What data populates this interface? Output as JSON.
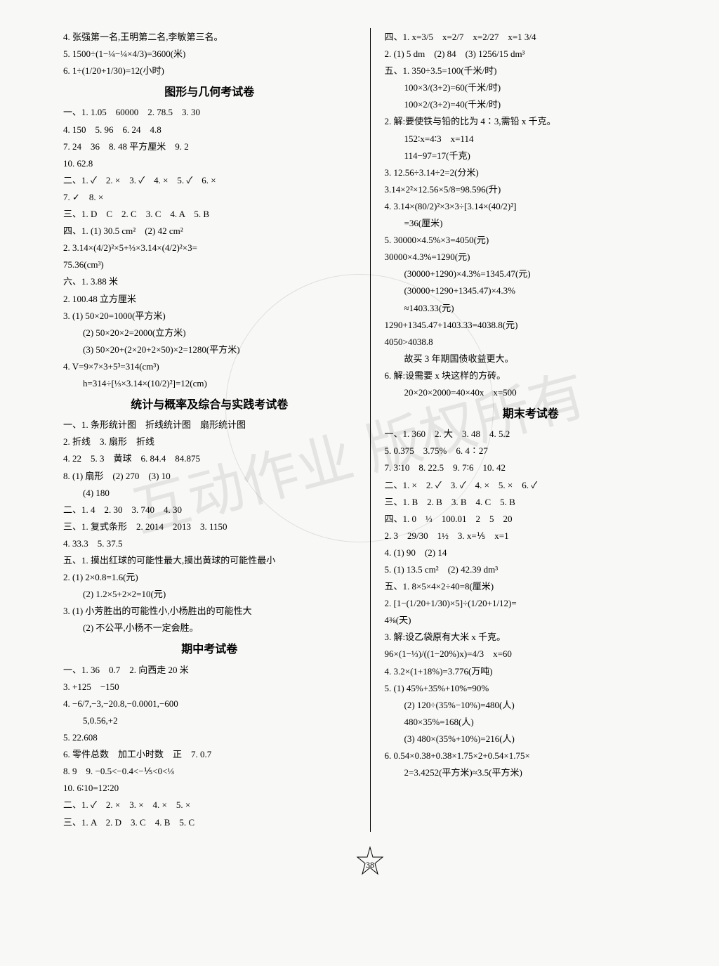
{
  "page_number": "38",
  "watermark": "互动作业 版权所有",
  "left": {
    "pre": [
      "4. 张强第一名,王明第二名,李敏第三名。",
      "5. 1500÷(1−¼−¼×4/3)=3600(米)",
      "6. 1÷(1/20+1/30)=12(小时)"
    ],
    "sec1_title": "图形与几何考试卷",
    "sec1": [
      "一、1. 1.05　60000　2. 78.5　3. 30",
      "4. 150　5. 96　6. 24　4.8",
      "7. 24　36　8. 48 平方厘米　9. 2",
      "10. 62.8",
      "二、1. ✓　2. ×　3. ✓　4. ×　5. ✓　6. ×",
      "7. ✓　8. ×",
      "三、1. D　C　2. C　3. C　4. A　5. B",
      "四、1. (1) 30.5 cm²　(2) 42 cm²",
      "2. 3.14×(4/2)²×5+⅓×3.14×(4/2)²×3=",
      "75.36(cm³)",
      "六、1. 3.88 米",
      "2. 100.48 立方厘米",
      "3. (1) 50×20=1000(平方米)",
      "(2) 50×20×2=2000(立方米)",
      "(3) 50×20+(2×20+2×50)×2=1280(平方米)",
      "4. V=9×7×3+5³=314(cm³)",
      "h=314÷[⅓×3.14×(10/2)²]=12(cm)"
    ],
    "sec2_title": "统计与概率及综合与实践考试卷",
    "sec2": [
      "一、1. 条形统计图　折线统计图　扇形统计图",
      "2. 折线　3. 扇形　折线",
      "4. 22　5. 3　黄球　6. 84.4　84.875",
      "8. (1) 扇形　(2) 270　(3) 10",
      "(4) 180",
      "二、1. 4　2. 30　3. 740　4. 30",
      "三、1. 复式条形　2. 2014　2013　3. 1150",
      "4. 33.3　5. 37.5",
      "五、1. 摸出红球的可能性最大,摸出黄球的可能性最小",
      "2. (1) 2×0.8=1.6(元)",
      "(2) 1.2×5+2×2=10(元)",
      "3. (1) 小芳胜出的可能性小,小杨胜出的可能性大",
      "(2) 不公平,小杨不一定会胜。"
    ],
    "sec3_title": "期中考试卷",
    "sec3": [
      "一、1. 36　0.7　2. 向西走 20 米",
      "3. +125　−150",
      "4. −6/7,−3,−20.8,−0.0001,−600",
      "5,0.56,+2",
      "5. 22.608",
      "6. 零件总数　加工小时数　正　7. 0.7",
      "8. 9　9. −0.5<−0.4<−⅕<0<⅓",
      "10. 6∶10=12∶20",
      "二、1. ✓　2. ×　3. ×　4. ×　5. ×",
      "三、1. A　2. D　3. C　4. B　5. C"
    ]
  },
  "right": {
    "pre": [
      "四、1. x=3/5　x=2/7　x=2/27　x=1 3/4",
      "2. (1) 5 dm　(2) 84　(3) 1256/15 dm³",
      "五、1. 350÷3.5=100(千米/时)",
      "100×3/(3+2)=60(千米/时)",
      "100×2/(3+2)=40(千米/时)",
      "2. 解:要使铁与铅的比为 4∶3,需铅 x 千克。",
      "152∶x=4∶3　x=114",
      "114−97=17(千克)",
      "3. 12.56÷3.14÷2=2(分米)",
      "3.14×2²×12.56×5/8=98.596(升)",
      "4. 3.14×(80/2)²×3×3÷[3.14×(40/2)²]",
      "=36(厘米)",
      "5. 30000×4.5%×3=4050(元)",
      "30000×4.3%=1290(元)",
      "(30000+1290)×4.3%=1345.47(元)",
      "(30000+1290+1345.47)×4.3%",
      "≈1403.33(元)",
      "1290+1345.47+1403.33=4038.8(元)",
      "4050>4038.8",
      "故买 3 年期国债收益更大。",
      "6. 解:设需要 x 块这样的方砖。",
      "20×20×2000=40×40x　x=500"
    ],
    "sec1_title": "期末考试卷",
    "sec1": [
      "一、1. 360　2. 大　3. 48　4. 5.2",
      "5. 0.375　3.75%　6. 4∶27",
      "7. 3∶10　8. 22.5　9. 7∶6　10. 42",
      "二、1. ×　2. ✓　3. ✓　4. ×　5. ×　6. ✓",
      "三、1. B　2. B　3. B　4. C　5. B",
      "四、1. 0　⅓　100.01　2　5　20",
      "2. 3　29/30　1½　3. x=⅕　x=1",
      "4. (1) 90　(2) 14",
      "5. (1) 13.5 cm²　(2) 42.39 dm³",
      "五、1. 8×5×4×2÷40=8(厘米)",
      "2. [1−(1/20+1/30)×5]÷(1/20+1/12)=",
      "4⅜(天)",
      "3. 解:设乙袋原有大米 x 千克。",
      "96×(1−⅓)/((1−20%)x)=4/3　x=60",
      "4. 3.2×(1+18%)=3.776(万吨)",
      "5. (1) 45%+35%+10%=90%",
      "(2) 120÷(35%−10%)=480(人)",
      "480×35%=168(人)",
      "(3) 480×(35%+10%)=216(人)",
      "6. 0.54×0.38+0.38×1.75×2+0.54×1.75×",
      "2=3.4252(平方米)≈3.5(平方米)"
    ]
  }
}
